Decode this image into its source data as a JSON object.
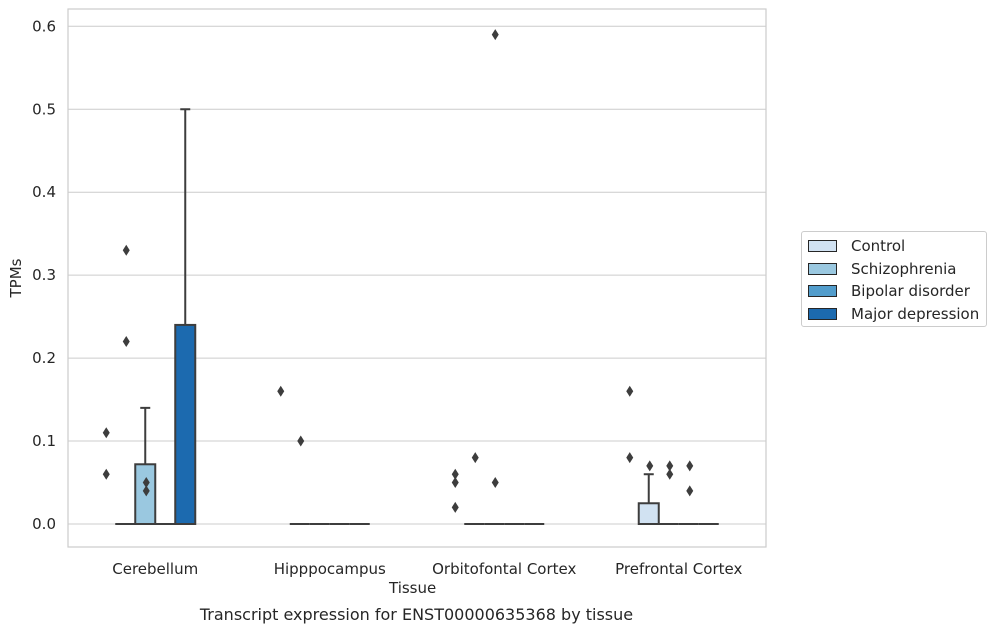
{
  "chart_data": {
    "type": "box",
    "caption": "Transcript expression for ENST00000635368 by tissue",
    "xlabel": "Tissue",
    "ylabel": "TPMs",
    "ylim": [
      -0.028,
      0.62
    ],
    "yticks": [
      "0.0",
      "0.1",
      "0.2",
      "0.3",
      "0.4",
      "0.5",
      "0.6"
    ],
    "grid": true,
    "legend_position": "right",
    "categories": [
      "Cerebellum",
      "Hipppocampus",
      "Orbitofontal Cortex",
      "Prefrontal Cortex"
    ],
    "series": [
      {
        "name": "Control",
        "color": "#d1e2f2"
      },
      {
        "name": "Schizophrenia",
        "color": "#9ac8e0"
      },
      {
        "name": "Bipolar disorder",
        "color": "#529dcc"
      },
      {
        "name": "Major depression",
        "color": "#1c6aaf"
      }
    ],
    "boxes": [
      {
        "category": 0,
        "series": 0,
        "q1": 0,
        "median": 0,
        "q3": 0,
        "whisker_low": 0,
        "whisker_high": 0,
        "outliers": [
          0.11,
          0.06
        ]
      },
      {
        "category": 0,
        "series": 1,
        "q1": 0,
        "median": 0,
        "q3": 0.072,
        "whisker_low": 0,
        "whisker_high": 0.14,
        "outliers": [
          0.33,
          0.22
        ]
      },
      {
        "category": 0,
        "series": 2,
        "q1": 0,
        "median": 0,
        "q3": 0,
        "whisker_low": 0,
        "whisker_high": 0,
        "outliers": [
          0.05,
          0.04
        ]
      },
      {
        "category": 0,
        "series": 3,
        "q1": 0,
        "median": 0,
        "q3": 0.24,
        "whisker_low": 0,
        "whisker_high": 0.5,
        "outliers": []
      },
      {
        "category": 1,
        "series": 0,
        "q1": 0,
        "median": 0,
        "q3": 0,
        "whisker_low": 0,
        "whisker_high": 0,
        "outliers": [
          0.16
        ]
      },
      {
        "category": 1,
        "series": 1,
        "q1": 0,
        "median": 0,
        "q3": 0,
        "whisker_low": 0,
        "whisker_high": 0,
        "outliers": [
          0.1
        ]
      },
      {
        "category": 1,
        "series": 2,
        "q1": 0,
        "median": 0,
        "q3": 0,
        "whisker_low": 0,
        "whisker_high": 0,
        "outliers": []
      },
      {
        "category": 1,
        "series": 3,
        "q1": 0,
        "median": 0,
        "q3": 0,
        "whisker_low": 0,
        "whisker_high": 0,
        "outliers": []
      },
      {
        "category": 2,
        "series": 0,
        "q1": 0,
        "median": 0,
        "q3": 0,
        "whisker_low": 0,
        "whisker_high": 0,
        "outliers": [
          0.06,
          0.05,
          0.02
        ]
      },
      {
        "category": 2,
        "series": 1,
        "q1": 0,
        "median": 0,
        "q3": 0,
        "whisker_low": 0,
        "whisker_high": 0,
        "outliers": [
          0.08
        ]
      },
      {
        "category": 2,
        "series": 2,
        "q1": 0,
        "median": 0,
        "q3": 0,
        "whisker_low": 0,
        "whisker_high": 0,
        "outliers": [
          0.59,
          0.05
        ]
      },
      {
        "category": 2,
        "series": 3,
        "q1": 0,
        "median": 0,
        "q3": 0,
        "whisker_low": 0,
        "whisker_high": 0,
        "outliers": []
      },
      {
        "category": 3,
        "series": 0,
        "q1": 0,
        "median": 0,
        "q3": 0.025,
        "whisker_low": 0,
        "whisker_high": 0.06,
        "outliers": [
          0.16,
          0.08
        ]
      },
      {
        "category": 3,
        "series": 1,
        "q1": 0,
        "median": 0,
        "q3": 0,
        "whisker_low": 0,
        "whisker_high": 0,
        "outliers": [
          0.07
        ]
      },
      {
        "category": 3,
        "series": 2,
        "q1": 0,
        "median": 0,
        "q3": 0,
        "whisker_low": 0,
        "whisker_high": 0,
        "outliers": [
          0.07,
          0.06
        ]
      },
      {
        "category": 3,
        "series": 3,
        "q1": 0,
        "median": 0,
        "q3": 0,
        "whisker_low": 0,
        "whisker_high": 0,
        "outliers": [
          0.07,
          0.04
        ]
      }
    ]
  }
}
